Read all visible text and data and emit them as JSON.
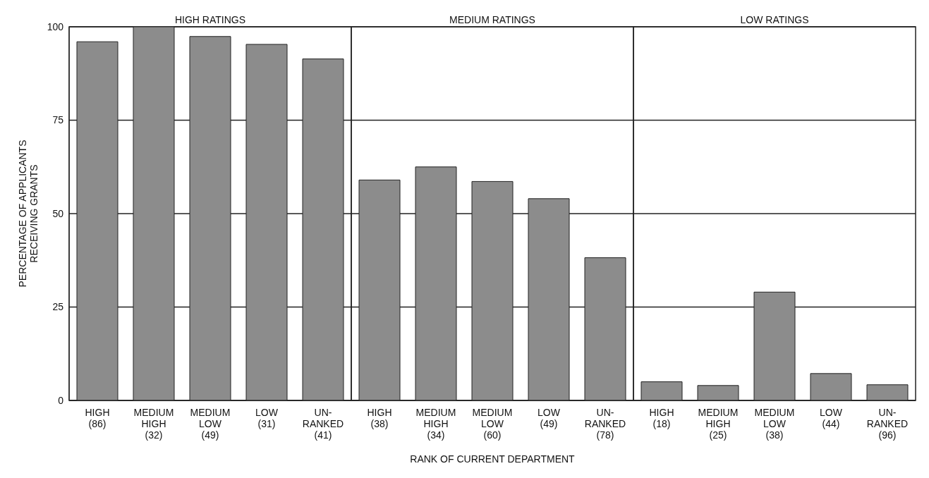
{
  "chart_data": {
    "type": "bar",
    "xlabel": "RANK OF CURRENT DEPARTMENT",
    "ylabel": "PERCENTAGE OF APPLICANTS\nRECEIVING GRANTS",
    "categories": [
      "HIGH\n(86)",
      "MEDIUM\nHIGH\n(32)",
      "MEDIUM\nLOW\n(49)",
      "LOW\n(31)",
      "UN-\nRANKED\n(41)",
      "HIGH\n(38)",
      "MEDIUM\nHIGH\n(34)",
      "MEDIUM\nLOW\n(60)",
      "LOW\n(49)",
      "UN-\nRANKED\n(78)",
      "HIGH\n(18)",
      "MEDIUM\nHIGH\n(25)",
      "MEDIUM\nLOW\n(38)",
      "LOW\n(44)",
      "UN-\nRANKED\n(96)"
    ],
    "values": [
      96,
      100,
      97.4,
      95.3,
      91.4,
      59,
      62.5,
      58.6,
      54,
      38.2,
      5,
      4,
      29,
      7.2,
      4.2
    ],
    "color": "#8c8c8c",
    "ylim": [
      0,
      100
    ],
    "yticks": [
      0,
      25,
      50,
      75,
      100
    ],
    "grid": "y",
    "annotations": [
      "HIGH RATINGS",
      "MEDIUM RATINGS",
      "LOW RATINGS"
    ]
  }
}
